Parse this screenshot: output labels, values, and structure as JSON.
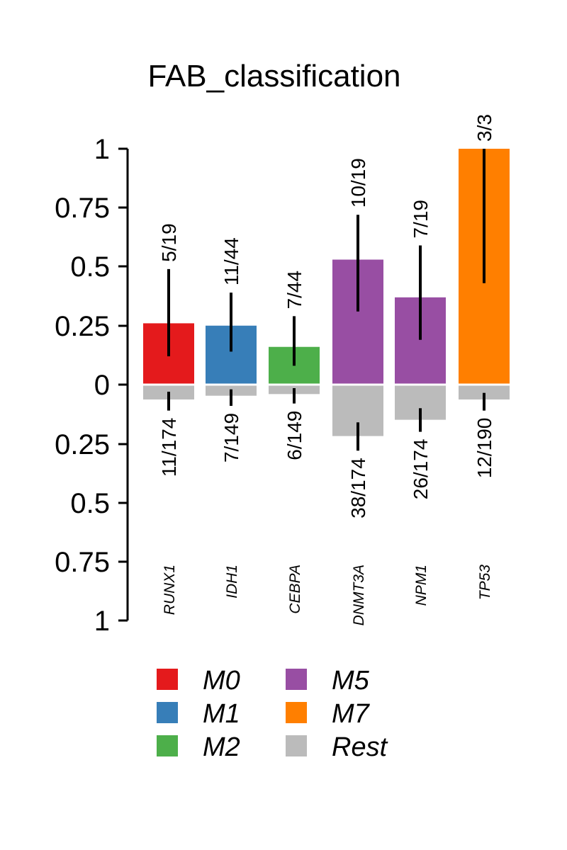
{
  "chart_data": {
    "type": "bar",
    "title": "FAB_classification",
    "categories": [
      "RUNX1",
      "IDH1",
      "CEBPA",
      "DNMT3A",
      "NPM1",
      "TP53"
    ],
    "groups": [
      "M0",
      "M1",
      "M2",
      "M5",
      "M5",
      "M7"
    ],
    "values": [
      0.26,
      0.25,
      0.16,
      0.53,
      0.37,
      1.0
    ],
    "value_labels": [
      "5/19",
      "11/44",
      "7/44",
      "10/19",
      "7/19",
      "3/3"
    ],
    "value_ci": [
      [
        0.12,
        0.49
      ],
      [
        0.14,
        0.39
      ],
      [
        0.08,
        0.29
      ],
      [
        0.31,
        0.72
      ],
      [
        0.19,
        0.59
      ],
      [
        0.43,
        1.0
      ]
    ],
    "rest_values": [
      0.063,
      0.047,
      0.04,
      0.218,
      0.149,
      0.063
    ],
    "rest_labels": [
      "11/174",
      "7/149",
      "6/149",
      "38/174",
      "26/174",
      "12/190"
    ],
    "rest_ci": [
      [
        0.03,
        0.11
      ],
      [
        0.02,
        0.09
      ],
      [
        0.015,
        0.08
      ],
      [
        0.16,
        0.28
      ],
      [
        0.1,
        0.2
      ],
      [
        0.035,
        0.11
      ]
    ],
    "yticks": [
      "1",
      "0.75",
      "0.5",
      "0.25",
      "0",
      "0.25",
      "0.5",
      "0.75",
      "1"
    ],
    "ylim": [
      -1,
      1
    ],
    "legend": [
      {
        "name": "M0",
        "color": "#e41a1c"
      },
      {
        "name": "M1",
        "color": "#377eb8"
      },
      {
        "name": "M2",
        "color": "#4daf4a"
      },
      {
        "name": "M5",
        "color": "#984ea3"
      },
      {
        "name": "M7",
        "color": "#ff7f00"
      },
      {
        "name": "Rest",
        "color": "#bbbbbb"
      }
    ],
    "legend_placement": "bottom",
    "grid": false
  }
}
